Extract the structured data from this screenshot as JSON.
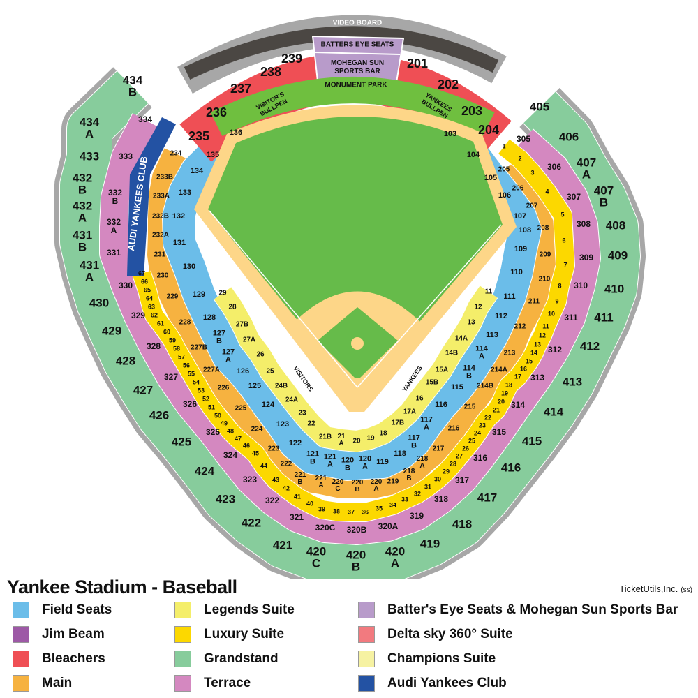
{
  "title": "Yankee Stadium - Baseball",
  "credit": "TicketUtils,Inc.",
  "credit_code": "(ss)",
  "colors": {
    "field_seats": "#6bbde9",
    "jim_beam": "#9d59a6",
    "bleachers": "#ef4f55",
    "main": "#f6b240",
    "legends": "#f4ee6a",
    "luxury": "#fcd800",
    "grandstand": "#87cc9c",
    "terrace": "#d488c0",
    "battereye": "#b89bca",
    "delta": "#f27a7f",
    "champions": "#f6f2a2",
    "audi": "#2352a3",
    "grass": "#66bb4a",
    "dirt": "#fdd688",
    "videoboard": "#4b4743",
    "concourse": "#a7a7a7"
  },
  "legend": [
    {
      "label": "Field Seats",
      "color": "#6bbde9"
    },
    {
      "label": "Jim Beam",
      "color": "#9d59a6"
    },
    {
      "label": "Bleachers",
      "color": "#ef4f55"
    },
    {
      "label": "Main",
      "color": "#f6b240"
    },
    {
      "label": "Legends Suite",
      "color": "#f4ee6a"
    },
    {
      "label": "Luxury Suite",
      "color": "#fcd800"
    },
    {
      "label": "Grandstand",
      "color": "#87cc9c"
    },
    {
      "label": "Terrace",
      "color": "#d488c0"
    },
    {
      "label": "Batter's Eye Seats & Mohegan Sun Sports Bar",
      "color": "#b89bca"
    },
    {
      "label": "Delta sky 360° Suite",
      "color": "#f27a7f"
    },
    {
      "label": "Champions Suite",
      "color": "#f6f2a2"
    },
    {
      "label": "Audi Yankees Club",
      "color": "#2352a3"
    }
  ],
  "areas": {
    "video_board": "VIDEO BOARD",
    "batters_eye": "BATTERS EYE SEATS",
    "mohegan": "MOHEGAN SUN SPORTS BAR",
    "monument_park": "MONUMENT PARK",
    "visitors_bullpen": "VISITOR'S BULLPEN",
    "yankees_bullpen": "YANKEES BULLPEN",
    "visitors_dugout": "VISITORS",
    "yankees_dugout": "YANKEES",
    "audi_club": "AUDI YANKEES CLUB"
  },
  "sections": {
    "grandstand": [
      "434 B",
      "434 A",
      "433",
      "432 B",
      "432 A",
      "431 B",
      "431 A",
      "430",
      "429",
      "428",
      "427",
      "426",
      "425",
      "424",
      "423",
      "422",
      "421",
      "420 C",
      "420 B",
      "420 A",
      "419",
      "418",
      "417",
      "416",
      "415",
      "414",
      "413",
      "412",
      "411",
      "410",
      "409",
      "408",
      "407 B",
      "407 A",
      "406",
      "405"
    ],
    "terrace": [
      "334",
      "333",
      "332 B",
      "332 A",
      "331",
      "330",
      "329",
      "328",
      "327",
      "326",
      "325",
      "324",
      "323",
      "322",
      "321",
      "320C",
      "320B",
      "320A",
      "319",
      "318",
      "317",
      "316",
      "315",
      "314",
      "313",
      "312",
      "311",
      "310",
      "309",
      "308",
      "307",
      "306",
      "305"
    ],
    "main": [
      "234",
      "233B",
      "233A",
      "232B",
      "232A",
      "231",
      "230",
      "229",
      "228",
      "227B",
      "227A",
      "226",
      "225",
      "224",
      "223",
      "222",
      "221 B",
      "221 A",
      "220 C",
      "220 B",
      "220 A",
      "219",
      "218 B",
      "218 A",
      "217",
      "216",
      "215",
      "214B",
      "214A",
      "213",
      "212",
      "211",
      "210",
      "209",
      "208",
      "207",
      "206",
      "205"
    ],
    "luxury": [
      "67",
      "66",
      "65",
      "64",
      "63",
      "62",
      "61",
      "60",
      "59",
      "58",
      "57",
      "56",
      "55",
      "54",
      "53",
      "52",
      "51",
      "50",
      "49",
      "48",
      "47",
      "46",
      "45",
      "44",
      "43",
      "42",
      "41",
      "40",
      "39",
      "38",
      "37",
      "36",
      "35",
      "34",
      "33",
      "32",
      "31",
      "30",
      "29",
      "28",
      "27",
      "26",
      "25",
      "24",
      "23",
      "22",
      "21",
      "20",
      "19",
      "18",
      "17",
      "16",
      "15",
      "14",
      "13",
      "12",
      "11",
      "10",
      "9",
      "8",
      "7",
      "6",
      "5",
      "4",
      "3",
      "2",
      "1"
    ],
    "field": [
      "136",
      "135",
      "134",
      "133",
      "132",
      "131",
      "130",
      "129",
      "128",
      "127 B",
      "127 A",
      "126",
      "125",
      "124",
      "123",
      "122",
      "121 B",
      "121 A",
      "120 B",
      "120 A",
      "119",
      "118",
      "117 B",
      "117 A",
      "116",
      "115",
      "114 B",
      "114 A",
      "113",
      "112",
      "111",
      "110",
      "109",
      "108",
      "107",
      "106",
      "105",
      "104",
      "103"
    ],
    "legends": [
      "29",
      "28",
      "27B",
      "27A",
      "26",
      "25",
      "24B",
      "24A",
      "23",
      "22",
      "21B",
      "21 A",
      "20",
      "19",
      "18",
      "17B",
      "17A",
      "16",
      "15B",
      "15A",
      "14B",
      "14A",
      "13",
      "12",
      "11"
    ],
    "bleachers": [
      "235",
      "236",
      "237",
      "238",
      "239",
      "201",
      "202",
      "203",
      "204"
    ]
  }
}
